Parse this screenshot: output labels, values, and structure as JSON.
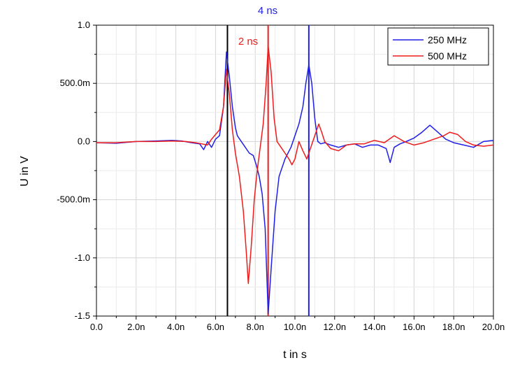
{
  "chart_data": {
    "type": "line",
    "xlabel": "t in s",
    "ylabel": "U in V",
    "xlim": [
      0,
      20
    ],
    "ylim": [
      -1.5,
      1.0
    ],
    "x_unit_scale": "nanoseconds",
    "x_ticks": [
      0,
      2,
      4,
      6,
      8,
      10,
      12,
      14,
      16,
      18,
      20
    ],
    "x_tick_labels": [
      "0.0",
      "2.0n",
      "4.0n",
      "6.0n",
      "8.0n",
      "10.0n",
      "12.0n",
      "14.0n",
      "16.0n",
      "18.0n",
      "20.0n"
    ],
    "y_ticks": [
      1.0,
      0.5,
      0.0,
      -0.5,
      -1.0,
      -1.5
    ],
    "y_tick_labels": [
      "1.0",
      "500.0m",
      "0.0",
      "-500.0m",
      "-1.0",
      "-1.5"
    ],
    "grid": true,
    "legend_position": "top-right",
    "series": [
      {
        "name": "250 MHz",
        "color": "#1f1fe6",
        "points": [
          [
            0.0,
            -0.01
          ],
          [
            1.0,
            -0.015
          ],
          [
            2.0,
            0.0
          ],
          [
            3.0,
            0.005
          ],
          [
            3.8,
            0.01
          ],
          [
            4.3,
            0.005
          ],
          [
            4.8,
            -0.01
          ],
          [
            5.2,
            -0.02
          ],
          [
            5.4,
            -0.07
          ],
          [
            5.6,
            0.0
          ],
          [
            5.8,
            -0.05
          ],
          [
            6.0,
            0.02
          ],
          [
            6.2,
            0.05
          ],
          [
            6.4,
            0.3
          ],
          [
            6.55,
            0.77
          ],
          [
            6.7,
            0.55
          ],
          [
            6.85,
            0.3
          ],
          [
            7.0,
            0.12
          ],
          [
            7.1,
            0.05
          ],
          [
            7.3,
            0.0
          ],
          [
            7.5,
            -0.05
          ],
          [
            7.7,
            -0.1
          ],
          [
            7.9,
            -0.12
          ],
          [
            8.05,
            -0.2
          ],
          [
            8.2,
            -0.3
          ],
          [
            8.35,
            -0.45
          ],
          [
            8.5,
            -0.75
          ],
          [
            8.65,
            -1.48
          ],
          [
            8.8,
            -1.1
          ],
          [
            9.0,
            -0.6
          ],
          [
            9.2,
            -0.3
          ],
          [
            9.5,
            -0.15
          ],
          [
            9.8,
            -0.05
          ],
          [
            10.0,
            0.05
          ],
          [
            10.2,
            0.15
          ],
          [
            10.4,
            0.3
          ],
          [
            10.55,
            0.5
          ],
          [
            10.7,
            0.66
          ],
          [
            10.85,
            0.5
          ],
          [
            11.0,
            0.2
          ],
          [
            11.15,
            0.0
          ],
          [
            11.3,
            -0.02
          ],
          [
            11.5,
            -0.01
          ],
          [
            11.8,
            -0.03
          ],
          [
            12.2,
            -0.05
          ],
          [
            12.6,
            -0.03
          ],
          [
            13.0,
            -0.02
          ],
          [
            13.4,
            -0.05
          ],
          [
            13.8,
            -0.03
          ],
          [
            14.2,
            -0.03
          ],
          [
            14.6,
            -0.06
          ],
          [
            14.8,
            -0.18
          ],
          [
            15.0,
            -0.05
          ],
          [
            15.3,
            -0.02
          ],
          [
            15.6,
            0.0
          ],
          [
            16.0,
            0.03
          ],
          [
            16.4,
            0.08
          ],
          [
            16.8,
            0.14
          ],
          [
            17.2,
            0.08
          ],
          [
            17.6,
            0.02
          ],
          [
            18.0,
            -0.01
          ],
          [
            18.5,
            -0.03
          ],
          [
            19.0,
            -0.05
          ],
          [
            19.5,
            0.0
          ],
          [
            20.0,
            0.01
          ]
        ]
      },
      {
        "name": "500 MHz",
        "color": "#ee1c1c",
        "points": [
          [
            0.0,
            -0.01
          ],
          [
            1.0,
            -0.01
          ],
          [
            2.0,
            0.0
          ],
          [
            3.0,
            0.0
          ],
          [
            3.8,
            0.005
          ],
          [
            4.5,
            0.0
          ],
          [
            5.0,
            -0.01
          ],
          [
            5.3,
            -0.02
          ],
          [
            5.6,
            -0.03
          ],
          [
            5.8,
            0.02
          ],
          [
            6.0,
            0.06
          ],
          [
            6.2,
            0.1
          ],
          [
            6.4,
            0.3
          ],
          [
            6.55,
            0.62
          ],
          [
            6.7,
            0.4
          ],
          [
            6.85,
            0.1
          ],
          [
            7.0,
            -0.1
          ],
          [
            7.2,
            -0.3
          ],
          [
            7.4,
            -0.6
          ],
          [
            7.55,
            -0.95
          ],
          [
            7.65,
            -1.22
          ],
          [
            7.8,
            -0.9
          ],
          [
            7.95,
            -0.5
          ],
          [
            8.1,
            -0.25
          ],
          [
            8.25,
            -0.05
          ],
          [
            8.4,
            0.15
          ],
          [
            8.55,
            0.5
          ],
          [
            8.65,
            0.82
          ],
          [
            8.8,
            0.6
          ],
          [
            8.95,
            0.2
          ],
          [
            9.1,
            0.0
          ],
          [
            9.3,
            -0.05
          ],
          [
            9.5,
            -0.1
          ],
          [
            9.7,
            -0.15
          ],
          [
            9.85,
            -0.2
          ],
          [
            10.0,
            -0.15
          ],
          [
            10.2,
            0.0
          ],
          [
            10.4,
            -0.08
          ],
          [
            10.6,
            -0.15
          ],
          [
            10.8,
            -0.05
          ],
          [
            11.0,
            0.05
          ],
          [
            11.2,
            0.15
          ],
          [
            11.35,
            0.08
          ],
          [
            11.5,
            0.0
          ],
          [
            11.8,
            -0.06
          ],
          [
            12.2,
            -0.08
          ],
          [
            12.6,
            -0.03
          ],
          [
            13.0,
            -0.02
          ],
          [
            13.5,
            -0.02
          ],
          [
            14.0,
            0.01
          ],
          [
            14.5,
            -0.01
          ],
          [
            15.0,
            0.05
          ],
          [
            15.5,
            0.0
          ],
          [
            16.0,
            -0.03
          ],
          [
            16.5,
            -0.01
          ],
          [
            17.0,
            0.02
          ],
          [
            17.5,
            0.05
          ],
          [
            17.8,
            0.08
          ],
          [
            18.2,
            0.06
          ],
          [
            18.6,
            0.0
          ],
          [
            19.0,
            -0.03
          ],
          [
            19.5,
            -0.04
          ],
          [
            20.0,
            -0.03
          ]
        ]
      }
    ],
    "markers": [
      {
        "x": 6.6,
        "color": "#000000"
      },
      {
        "x": 8.65,
        "color": "#ee1c1c"
      },
      {
        "x": 10.7,
        "color": "#1f1fe6"
      }
    ],
    "annotations": [
      {
        "text": "4 ns",
        "color": "#1f1fe6"
      },
      {
        "text": "2 ns",
        "color": "#ee1c1c"
      }
    ]
  }
}
